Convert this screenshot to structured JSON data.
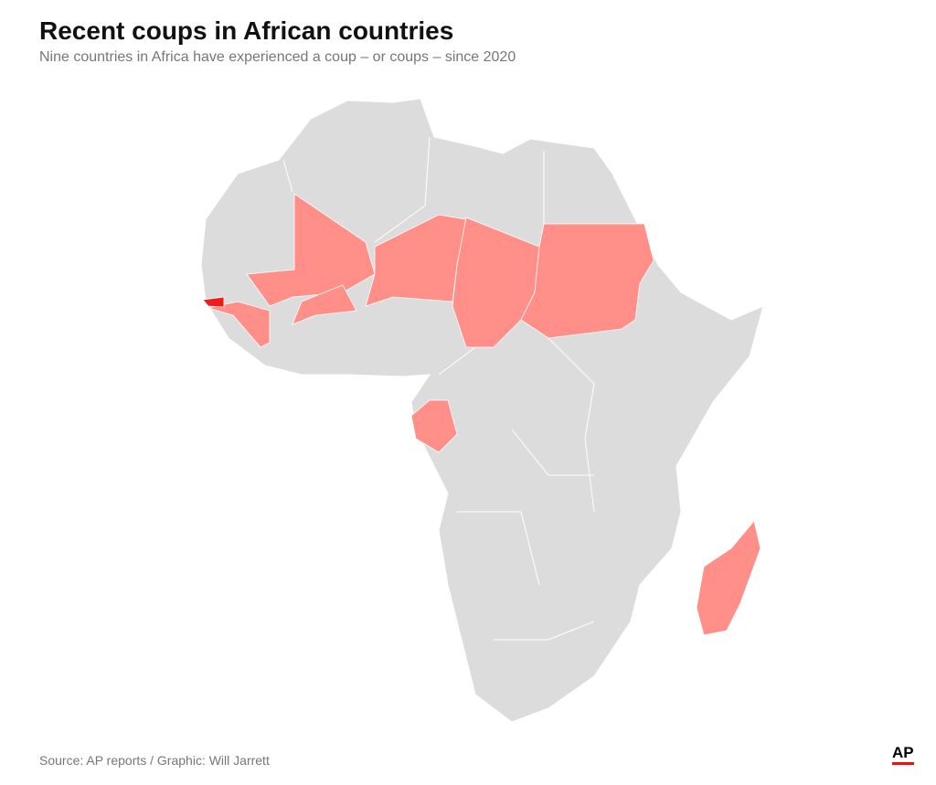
{
  "header": {
    "title": "Recent coups in African countries",
    "subtitle": "Nine countries in Africa have experienced a coup – or coups – since 2020"
  },
  "footer": {
    "source": "Source: AP reports / Graphic: Will Jarrett",
    "logo": "AP"
  }
}
